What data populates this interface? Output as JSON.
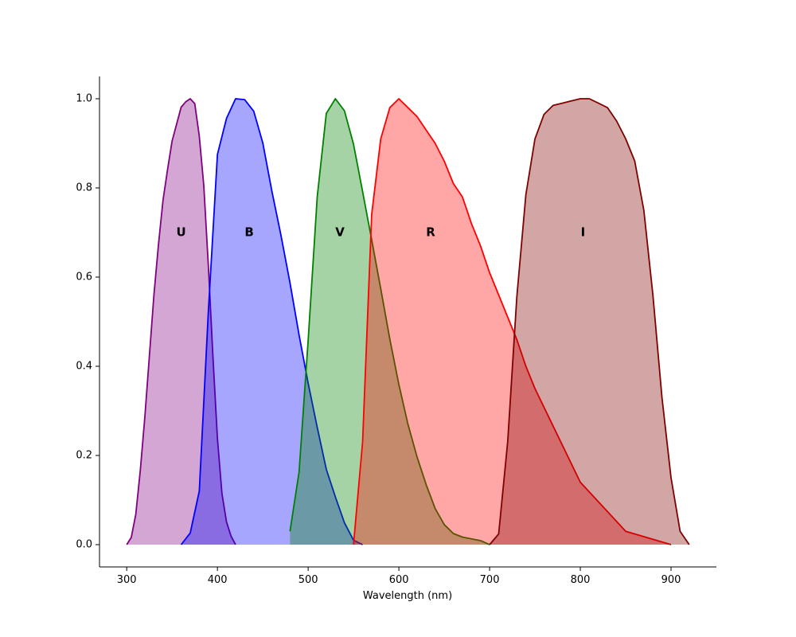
{
  "chart_data": {
    "type": "area",
    "title": "",
    "xlabel": "Wavelength (nm)",
    "ylabel": "",
    "xlim": [
      270,
      950
    ],
    "ylim": [
      -0.05,
      1.05
    ],
    "xticks": [
      300,
      400,
      500,
      600,
      700,
      800,
      900
    ],
    "yticks": [
      0.0,
      0.2,
      0.4,
      0.6,
      0.8,
      1.0
    ],
    "xtick_labels": [
      "300",
      "400",
      "500",
      "600",
      "700",
      "800",
      "900"
    ],
    "ytick_labels": [
      "0.0",
      "0.2",
      "0.4",
      "0.6",
      "0.8",
      "1.0"
    ],
    "grid": false,
    "legend": "none",
    "series": [
      {
        "name": "U",
        "color": "#800080",
        "label_x": 360,
        "label_y": 0.7,
        "x": [
          300,
          305,
          310,
          315,
          320,
          325,
          330,
          335,
          340,
          345,
          350,
          355,
          360,
          365,
          370,
          375,
          380,
          385,
          390,
          395,
          400,
          405,
          410,
          415,
          420
        ],
        "y": [
          0.0,
          0.016,
          0.068,
          0.167,
          0.287,
          0.423,
          0.56,
          0.673,
          0.772,
          0.841,
          0.905,
          0.943,
          0.981,
          0.993,
          1.0,
          0.989,
          0.916,
          0.804,
          0.625,
          0.423,
          0.238,
          0.114,
          0.051,
          0.019,
          0.0
        ]
      },
      {
        "name": "B",
        "color": "#0000ff",
        "label_x": 435,
        "label_y": 0.7,
        "x": [
          360,
          370,
          380,
          390,
          400,
          410,
          420,
          430,
          440,
          450,
          460,
          470,
          480,
          490,
          500,
          510,
          520,
          530,
          540,
          550,
          560
        ],
        "y": [
          0.0,
          0.026,
          0.12,
          0.523,
          0.875,
          0.956,
          1.0,
          0.998,
          0.972,
          0.901,
          0.793,
          0.694,
          0.587,
          0.47,
          0.362,
          0.263,
          0.169,
          0.107,
          0.049,
          0.01,
          0.0
        ]
      },
      {
        "name": "V",
        "color": "#008000",
        "label_x": 535,
        "label_y": 0.7,
        "x": [
          480,
          490,
          500,
          510,
          520,
          530,
          540,
          550,
          560,
          570,
          580,
          590,
          600,
          610,
          620,
          630,
          640,
          650,
          660,
          670,
          680,
          690,
          700
        ],
        "y": [
          0.03,
          0.163,
          0.458,
          0.78,
          0.967,
          1.0,
          0.973,
          0.898,
          0.792,
          0.684,
          0.574,
          0.461,
          0.359,
          0.27,
          0.197,
          0.135,
          0.081,
          0.045,
          0.025,
          0.017,
          0.013,
          0.009,
          0.0
        ]
      },
      {
        "name": "R",
        "color": "#ff0000",
        "label_x": 635,
        "label_y": 0.7,
        "x": [
          550,
          560,
          570,
          580,
          590,
          600,
          610,
          620,
          630,
          640,
          650,
          660,
          670,
          680,
          690,
          700,
          710,
          720,
          730,
          740,
          750,
          800,
          850,
          900
        ],
        "y": [
          0.0,
          0.23,
          0.74,
          0.91,
          0.98,
          1.0,
          0.98,
          0.96,
          0.93,
          0.9,
          0.86,
          0.81,
          0.78,
          0.72,
          0.67,
          0.61,
          0.56,
          0.51,
          0.46,
          0.4,
          0.35,
          0.14,
          0.03,
          0.0
        ]
      },
      {
        "name": "I",
        "color": "#800000",
        "label_x": 803,
        "label_y": 0.7,
        "x": [
          700,
          710,
          720,
          730,
          740,
          750,
          760,
          770,
          780,
          790,
          800,
          810,
          820,
          830,
          840,
          850,
          860,
          870,
          880,
          890,
          900,
          910,
          920
        ],
        "y": [
          0.0,
          0.024,
          0.232,
          0.555,
          0.785,
          0.91,
          0.965,
          0.985,
          0.99,
          0.995,
          1.0,
          1.0,
          0.99,
          0.98,
          0.95,
          0.91,
          0.86,
          0.75,
          0.56,
          0.33,
          0.15,
          0.03,
          0.0
        ]
      }
    ]
  }
}
